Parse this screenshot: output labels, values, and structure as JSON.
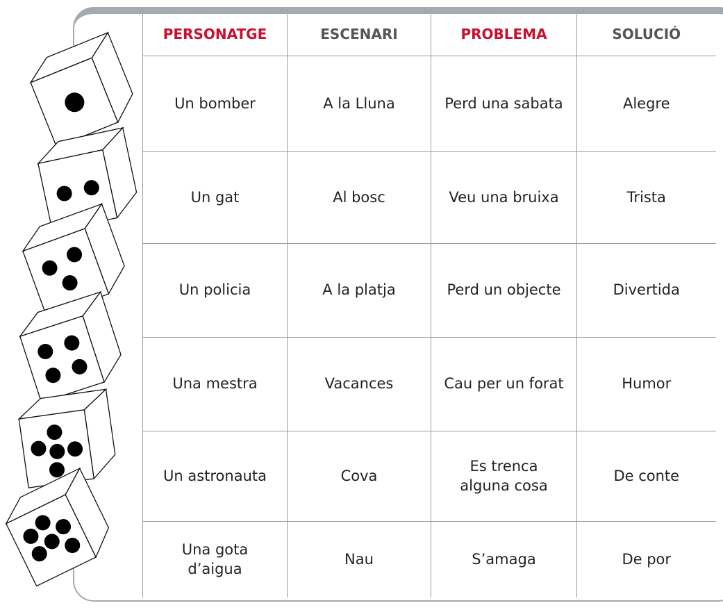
{
  "table": {
    "header": [
      "PERSONATGE",
      "ESCENARI",
      "PROBLEMA",
      "SOLUCIÓ"
    ],
    "rows": [
      [
        "Un bomber",
        "A la Lluna",
        "Perd una sabata",
        "Alegre"
      ],
      [
        "Un gat",
        "Al bosc",
        "Veu una bruixa",
        "Trista"
      ],
      [
        "Un policia",
        "A la platja",
        "Perd un objecte",
        "Divertida"
      ],
      [
        "Una mestra",
        "Vacances",
        "Cau per un forat",
        "Humor"
      ],
      [
        "Un astronauta",
        "Cova",
        "Es trenca alguna cosa",
        "De conte"
      ],
      [
        "Una gota d’aigua",
        "Nau",
        "S’amaga",
        "De por"
      ]
    ]
  }
}
